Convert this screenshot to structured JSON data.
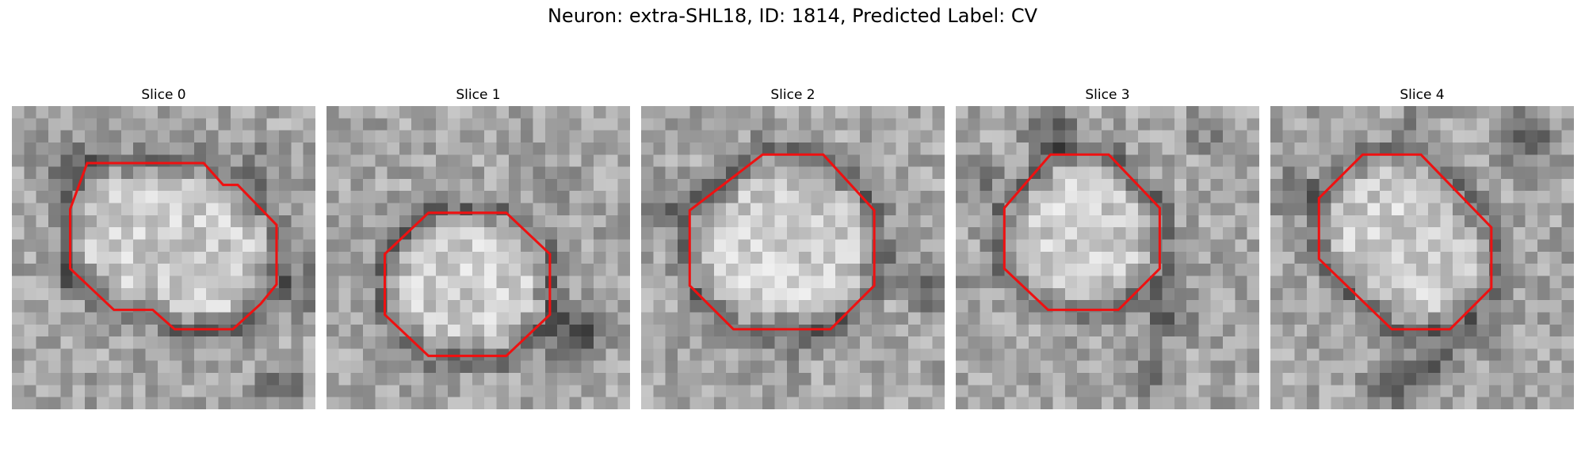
{
  "figure": {
    "title": "Neuron: extra-SHL18, ID: 1814, Predicted Label: CV"
  },
  "colors": {
    "contour": "#ee1111",
    "background": "#ffffff",
    "colormap": "grayscale"
  },
  "grid_size": 25,
  "panels": [
    {
      "title": "Slice 0",
      "contour": [
        [
          6.2,
          4.7
        ],
        [
          15.8,
          4.7
        ],
        [
          17.4,
          6.5
        ],
        [
          18.6,
          6.5
        ],
        [
          21.8,
          9.8
        ],
        [
          21.8,
          14.7
        ],
        [
          20.5,
          16.3
        ],
        [
          18.2,
          18.4
        ],
        [
          13.4,
          18.4
        ],
        [
          11.6,
          16.8
        ],
        [
          8.4,
          16.8
        ],
        [
          4.8,
          13.4
        ],
        [
          4.8,
          8.5
        ]
      ],
      "dark_blobs": [
        [
          4.5,
          4.5,
          3.5,
          55
        ],
        [
          20,
          5,
          3,
          45
        ],
        [
          24,
          15,
          3,
          70
        ],
        [
          22,
          23,
          2.5,
          80
        ],
        [
          13,
          6,
          2,
          40
        ],
        [
          4.5,
          14,
          2.5,
          45
        ]
      ]
    },
    {
      "title": "Slice 1",
      "contour": [
        [
          8.4,
          8.8
        ],
        [
          14.8,
          8.8
        ],
        [
          18.4,
          12.2
        ],
        [
          18.4,
          17.2
        ],
        [
          14.8,
          20.6
        ],
        [
          8.4,
          20.6
        ],
        [
          4.8,
          17.2
        ],
        [
          4.8,
          12.2
        ]
      ],
      "dark_blobs": [
        [
          20.5,
          19,
          3.5,
          110
        ],
        [
          19,
          7,
          2.5,
          40
        ],
        [
          4.5,
          21,
          2,
          35
        ],
        [
          1.5,
          12,
          2,
          35
        ],
        [
          11,
          21,
          2,
          40
        ]
      ]
    },
    {
      "title": "Slice 2",
      "contour": [
        [
          10,
          4
        ],
        [
          15,
          4
        ],
        [
          19.2,
          8.6
        ],
        [
          19.2,
          14.8
        ],
        [
          15.6,
          18.4
        ],
        [
          7.6,
          18.4
        ],
        [
          4,
          14.8
        ],
        [
          4,
          8.6
        ]
      ],
      "dark_blobs": [
        [
          2,
          8,
          3,
          55
        ],
        [
          23.5,
          15,
          2.5,
          80
        ],
        [
          21,
          12,
          2,
          40
        ],
        [
          13,
          20,
          2,
          35
        ],
        [
          10,
          2,
          2,
          35
        ]
      ]
    },
    {
      "title": "Slice 3",
      "contour": [
        [
          7.8,
          4
        ],
        [
          12.6,
          4
        ],
        [
          16.8,
          8.4
        ],
        [
          16.8,
          13.4
        ],
        [
          13.4,
          16.8
        ],
        [
          7.6,
          16.8
        ],
        [
          4,
          13.4
        ],
        [
          4,
          8.4
        ]
      ],
      "dark_blobs": [
        [
          8,
          2,
          3.5,
          60
        ],
        [
          17.5,
          17,
          3,
          80
        ],
        [
          16,
          22,
          2.5,
          60
        ],
        [
          2,
          6,
          2.5,
          45
        ],
        [
          21,
          2,
          3,
          40
        ],
        [
          2,
          14,
          2,
          40
        ]
      ]
    },
    {
      "title": "Slice 4",
      "contour": [
        [
          7.6,
          4
        ],
        [
          12.4,
          4
        ],
        [
          18.2,
          10
        ],
        [
          18.2,
          15
        ],
        [
          14.8,
          18.4
        ],
        [
          10,
          18.4
        ],
        [
          4,
          12.6
        ],
        [
          4,
          7.6
        ]
      ],
      "dark_blobs": [
        [
          21,
          3,
          4,
          70
        ],
        [
          2,
          7,
          3,
          55
        ],
        [
          10.5,
          23,
          3.5,
          85
        ],
        [
          14,
          21,
          2.5,
          70
        ],
        [
          17.5,
          19,
          2.5,
          60
        ],
        [
          12,
          1.5,
          2,
          40
        ]
      ]
    }
  ]
}
